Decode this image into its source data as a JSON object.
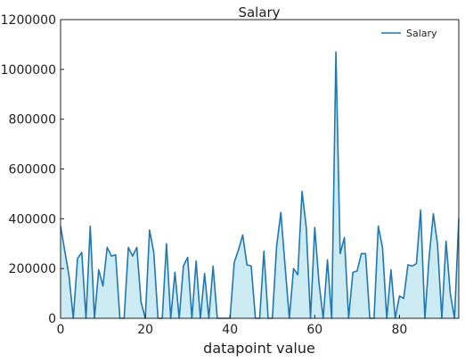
{
  "chart_data": {
    "type": "area",
    "title": "Salary",
    "xlabel": "datapoint value",
    "ylabel": "",
    "xlim": [
      0,
      94
    ],
    "ylim": [
      0,
      1200000
    ],
    "xticks": [
      0,
      20,
      40,
      60,
      80
    ],
    "xtick_labels": [
      "0",
      "20",
      "40",
      "60",
      "80"
    ],
    "yticks": [
      0,
      200000,
      400000,
      600000,
      800000,
      1000000,
      1200000
    ],
    "ytick_labels": [
      "0",
      "200000",
      "400000",
      "600000",
      "800000",
      "1000000",
      "1200000"
    ],
    "grid": false,
    "legend_position": "top-right",
    "line_color": "#1f77b4",
    "fill_color": "#cdebf3",
    "series": [
      {
        "name": "Salary",
        "x": [
          0,
          1,
          2,
          3,
          4,
          5,
          6,
          7,
          8,
          9,
          10,
          11,
          12,
          13,
          14,
          15,
          16,
          17,
          18,
          19,
          20,
          21,
          22,
          23,
          24,
          25,
          26,
          27,
          28,
          29,
          30,
          31,
          32,
          33,
          34,
          35,
          36,
          37,
          38,
          39,
          40,
          41,
          42,
          43,
          44,
          45,
          46,
          47,
          48,
          49,
          50,
          51,
          52,
          53,
          54,
          55,
          56,
          57,
          58,
          59,
          60,
          61,
          62,
          63,
          64,
          65,
          66,
          67,
          68,
          69,
          70,
          71,
          72,
          73,
          74,
          75,
          76,
          77,
          78,
          79,
          80,
          81,
          82,
          83,
          84,
          85,
          86,
          87,
          88,
          89,
          90,
          91,
          92,
          93,
          94
        ],
        "values": [
          370000,
          270000,
          170000,
          0,
          240000,
          265000,
          0,
          370000,
          0,
          195000,
          130000,
          285000,
          250000,
          255000,
          0,
          0,
          285000,
          250000,
          285000,
          65000,
          0,
          355000,
          265000,
          0,
          0,
          300000,
          0,
          185000,
          0,
          210000,
          245000,
          0,
          230000,
          0,
          180000,
          0,
          210000,
          0,
          0,
          0,
          0,
          225000,
          275000,
          335000,
          215000,
          210000,
          0,
          0,
          270000,
          0,
          0,
          290000,
          425000,
          210000,
          0,
          200000,
          175000,
          510000,
          365000,
          0,
          365000,
          145000,
          0,
          235000,
          0,
          1070000,
          260000,
          325000,
          0,
          185000,
          190000,
          260000,
          260000,
          0,
          0,
          370000,
          285000,
          0,
          195000,
          0,
          90000,
          80000,
          215000,
          210000,
          220000,
          435000,
          0,
          245000,
          420000,
          295000,
          0,
          310000,
          100000,
          0,
          400000
        ]
      }
    ]
  }
}
